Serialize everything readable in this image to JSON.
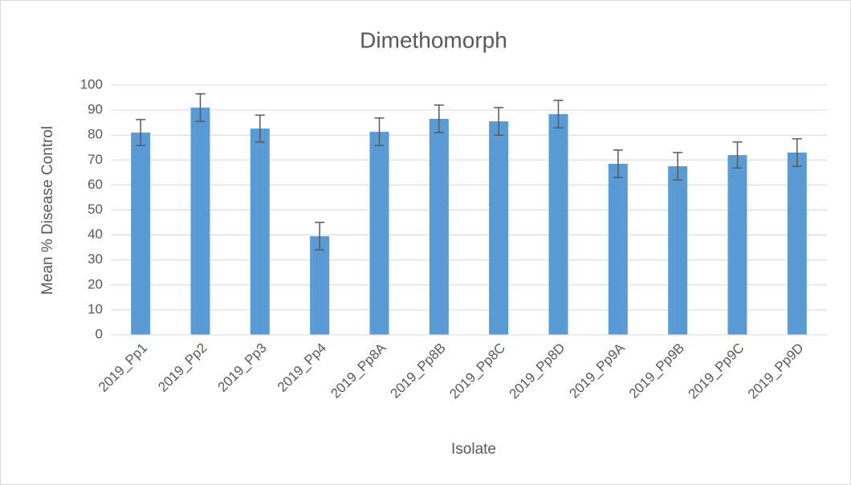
{
  "chart_data": {
    "type": "bar",
    "title": "Dimethomorph",
    "x_label": "Isolate",
    "y_label": "Mean % Disease Control",
    "categories": [
      "2019_Pp1",
      "2019_Pp2",
      "2019_Pp3",
      "2019_Pp4",
      "2019_Pp8A",
      "2019_Pp8B",
      "2019_Pp8C",
      "2019_Pp8D",
      "2019_Pp9A",
      "2019_Pp9B",
      "2019_Pp9C",
      "2019_Pp9D"
    ],
    "values": [
      81,
      91,
      82.6,
      39.5,
      81.3,
      86.5,
      85.5,
      88.4,
      68.5,
      67.5,
      72,
      73
    ],
    "errors": [
      5.2,
      5.5,
      5.4,
      5.5,
      5.5,
      5.5,
      5.5,
      5.5,
      5.5,
      5.5,
      5.2,
      5.5
    ],
    "color": "#5b9bd5",
    "error_color": "#595959",
    "ylim": [
      0,
      100
    ],
    "yticks": [
      0,
      10,
      20,
      30,
      40,
      50,
      60,
      70,
      80,
      90,
      100
    ],
    "grid": true
  }
}
